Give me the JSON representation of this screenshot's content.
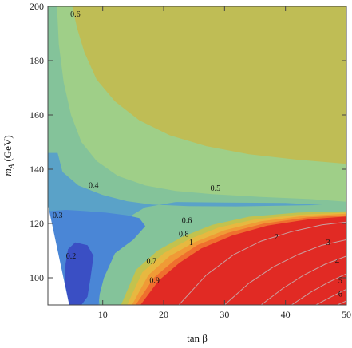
{
  "chart_data": {
    "type": "contour",
    "xlabel": "tan β",
    "ylabel_main": "m",
    "ylabel_sub": "A",
    "ylabel_unit": " (GeV)",
    "xlim": [
      1,
      50
    ],
    "ylim": [
      90,
      200
    ],
    "xticks": [
      10,
      20,
      30,
      40,
      50
    ],
    "yticks": [
      100,
      120,
      140,
      160,
      180,
      200
    ],
    "region_colors": {
      "below_0.2": "#3a4fc4",
      "0.2_0.3": "#4a86d6",
      "0.3_0.4": "#5aa2c8",
      "0.4_0.5": "#84c39a",
      "0.5_0.6": "#9fcf88",
      "above_0.6": "#bfbd55",
      "0.6_0.7": "#c2c24e",
      "0.7_0.8": "#e7b840",
      "0.8_0.9": "#f09a36",
      "0.9_1": "#ef6f2e",
      "above_1": "#e12a24",
      "unphysical": "#ffffff"
    },
    "contour_labels": [
      {
        "text": "0.6",
        "x": 5.5,
        "y": 197
      },
      {
        "text": "0.4",
        "x": 8.5,
        "y": 134
      },
      {
        "text": "0.5",
        "x": 28.5,
        "y": 133
      },
      {
        "text": "0.3",
        "x": 2.6,
        "y": 123
      },
      {
        "text": "0.2",
        "x": 4.8,
        "y": 108
      },
      {
        "text": "0.6",
        "x": 23.8,
        "y": 121
      },
      {
        "text": "0.8",
        "x": 23.3,
        "y": 116
      },
      {
        "text": "1",
        "x": 24.5,
        "y": 113
      },
      {
        "text": "0.7",
        "x": 18.0,
        "y": 106
      },
      {
        "text": "0.9",
        "x": 18.5,
        "y": 99
      },
      {
        "text": "2",
        "x": 38.5,
        "y": 115
      },
      {
        "text": "3",
        "x": 47.0,
        "y": 113
      },
      {
        "text": "4",
        "x": 48.5,
        "y": 106
      },
      {
        "text": "5",
        "x": 49.0,
        "y": 99
      },
      {
        "text": "6",
        "x": 49.0,
        "y": 94
      }
    ]
  }
}
